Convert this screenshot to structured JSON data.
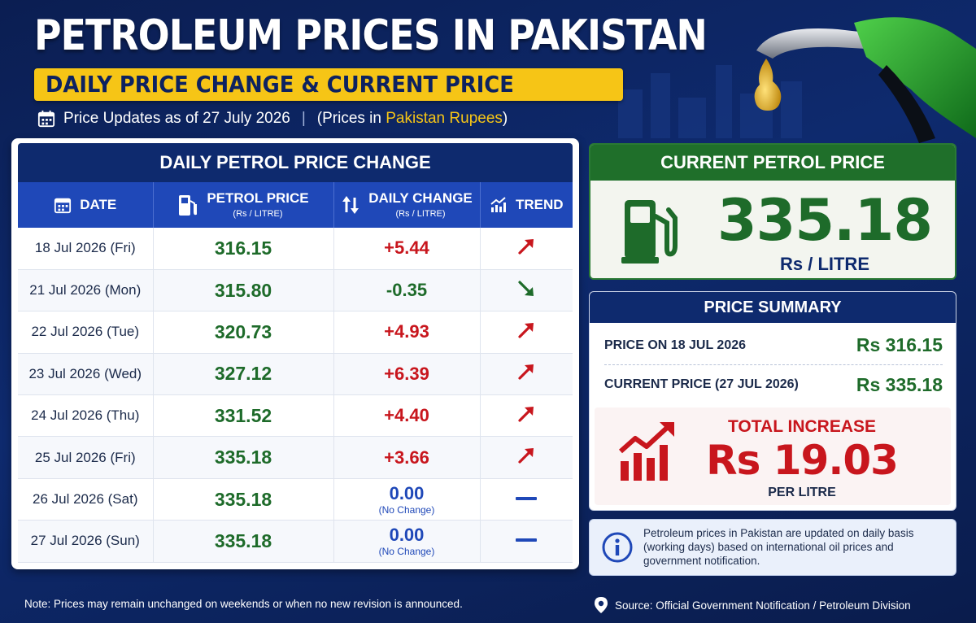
{
  "header": {
    "title": "PETROLEUM PRICES IN PAKISTAN",
    "subtitle": "DAILY PRICE CHANGE & CURRENT PRICE",
    "update_text": "Price Updates as of 27 July 2026",
    "currency_prefix": "(Prices in ",
    "currency_highlight": "Pakistan Rupees",
    "currency_suffix": ")"
  },
  "table": {
    "title": "DAILY PETROL PRICE CHANGE",
    "columns": {
      "date": "DATE",
      "price": "PETROL PRICE",
      "price_unit": "(Rs / LITRE)",
      "change": "DAILY CHANGE",
      "change_unit": "(Rs / LITRE)",
      "trend": "TREND"
    },
    "rows": [
      {
        "date": "18 Jul 2026 (Fri)",
        "price": "316.15",
        "change": "+5.44",
        "trend": "up"
      },
      {
        "date": "21 Jul 2026 (Mon)",
        "price": "315.80",
        "change": "-0.35",
        "trend": "down"
      },
      {
        "date": "22 Jul 2026 (Tue)",
        "price": "320.73",
        "change": "+4.93",
        "trend": "up"
      },
      {
        "date": "23 Jul 2026 (Wed)",
        "price": "327.12",
        "change": "+6.39",
        "trend": "up"
      },
      {
        "date": "24 Jul 2026 (Thu)",
        "price": "331.52",
        "change": "+4.40",
        "trend": "up"
      },
      {
        "date": "25 Jul 2026 (Fri)",
        "price": "335.18",
        "change": "+3.66",
        "trend": "up"
      },
      {
        "date": "26 Jul 2026 (Sat)",
        "price": "335.18",
        "change": "0.00",
        "note": "(No Change)",
        "trend": "flat"
      },
      {
        "date": "27 Jul 2026 (Sun)",
        "price": "335.18",
        "change": "0.00",
        "note": "(No Change)",
        "trend": "flat"
      }
    ]
  },
  "current": {
    "title": "CURRENT PETROL PRICE",
    "value": "335.18",
    "unit": "Rs / LITRE"
  },
  "summary": {
    "title": "PRICE SUMMARY",
    "row1_label": "PRICE ON 18 JUL 2026",
    "row1_value": "Rs 316.15",
    "row2_label": "CURRENT PRICE (27 JUL 2026)",
    "row2_value": "Rs 335.18",
    "increase_label": "TOTAL INCREASE",
    "increase_value": "Rs 19.03",
    "increase_unit": "PER LITRE"
  },
  "info": {
    "text": "Petroleum prices in Pakistan are updated on daily basis (working days) based on international oil prices and government notification."
  },
  "footer": {
    "note": "Note: Prices may remain unchanged on weekends or when no new revision is announced.",
    "source": "Source: Official Government Notification / Petroleum Division"
  },
  "colors": {
    "navy": "#0e2a6e",
    "blue": "#1f48b8",
    "green": "#1e6b2a",
    "red": "#c8161d",
    "yellow": "#f6c516"
  },
  "icons": {
    "calendar": "calendar-icon",
    "fuel_pump": "fuel-pump-icon",
    "updown": "up-down-arrows-icon",
    "trend": "trend-chart-icon",
    "info": "info-icon",
    "location": "location-pin-icon"
  }
}
